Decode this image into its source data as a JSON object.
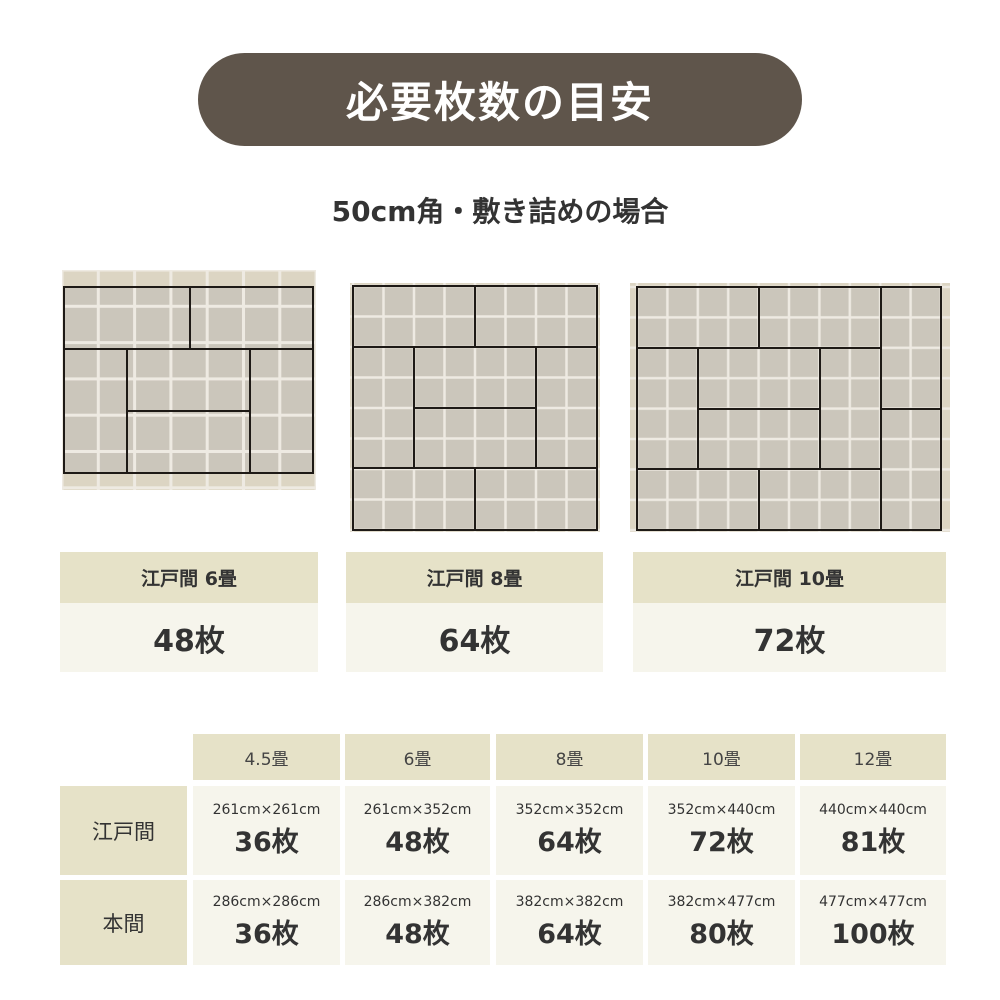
{
  "title": "必要枚数の目安",
  "subtitle": "50cm角・敷き詰めの場合",
  "cards": [
    {
      "label": "江戸間 6畳",
      "value": "48枚"
    },
    {
      "label": "江戸間 8畳",
      "value": "64枚"
    },
    {
      "label": "江戸間 10畳",
      "value": "72枚"
    }
  ],
  "table": {
    "columns": [
      "4.5畳",
      "6畳",
      "8畳",
      "10畳",
      "12畳"
    ],
    "rows": [
      {
        "label": "江戸間",
        "cells": [
          {
            "size": "261cm×261cm",
            "count": "36枚"
          },
          {
            "size": "261cm×352cm",
            "count": "48枚"
          },
          {
            "size": "352cm×352cm",
            "count": "64枚"
          },
          {
            "size": "352cm×440cm",
            "count": "72枚"
          },
          {
            "size": "440cm×440cm",
            "count": "81枚"
          }
        ]
      },
      {
        "label": "本間",
        "cells": [
          {
            "size": "286cm×286cm",
            "count": "36枚"
          },
          {
            "size": "286cm×382cm",
            "count": "48枚"
          },
          {
            "size": "382cm×382cm",
            "count": "64枚"
          },
          {
            "size": "382cm×477cm",
            "count": "80枚"
          },
          {
            "size": "477cm×477cm",
            "count": "100枚"
          }
        ]
      }
    ]
  },
  "colors": {
    "title_bg": "#5f554b",
    "label_bg": "#e6e2c8",
    "cell_bg": "#f6f5ec",
    "tatami": "#cbc6bb",
    "tile_bg": "#dcd5c3"
  }
}
